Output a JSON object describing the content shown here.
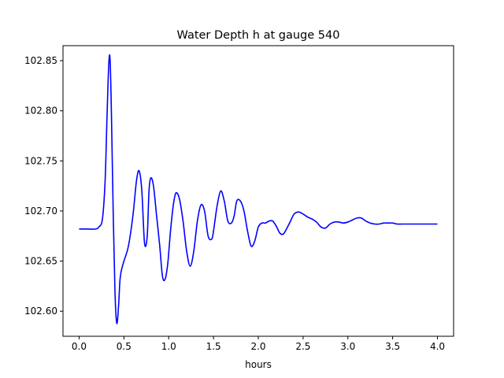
{
  "chart_data": {
    "type": "line",
    "title": "Water Depth h at gauge 540",
    "xlabel": "hours",
    "ylabel": "",
    "xlim": [
      -0.18,
      4.18
    ],
    "ylim": [
      102.575,
      102.865
    ],
    "xticks": [
      0.0,
      0.5,
      1.0,
      1.5,
      2.0,
      2.5,
      3.0,
      3.5,
      4.0
    ],
    "xtick_labels": [
      "0.0",
      "0.5",
      "1.0",
      "1.5",
      "2.0",
      "2.5",
      "3.0",
      "3.5",
      "4.0"
    ],
    "yticks": [
      102.6,
      102.65,
      102.7,
      102.75,
      102.8,
      102.85
    ],
    "ytick_labels": [
      "102.60",
      "102.65",
      "102.70",
      "102.75",
      "102.80",
      "102.85"
    ],
    "grid": false,
    "series": [
      {
        "color": "#0000ff",
        "x": [
          0.0,
          0.1,
          0.18,
          0.22,
          0.26,
          0.29,
          0.31,
          0.33,
          0.345,
          0.36,
          0.38,
          0.4,
          0.42,
          0.44,
          0.455,
          0.47,
          0.5,
          0.55,
          0.6,
          0.64,
          0.67,
          0.7,
          0.73,
          0.76,
          0.78,
          0.8,
          0.83,
          0.865,
          0.9,
          0.93,
          0.96,
          0.99,
          1.02,
          1.05,
          1.08,
          1.12,
          1.16,
          1.2,
          1.24,
          1.28,
          1.32,
          1.36,
          1.4,
          1.44,
          1.48,
          1.5,
          1.54,
          1.58,
          1.62,
          1.66,
          1.7,
          1.73,
          1.76,
          1.8,
          1.84,
          1.88,
          1.92,
          1.96,
          2.0,
          2.04,
          2.08,
          2.12,
          2.16,
          2.2,
          2.24,
          2.28,
          2.32,
          2.36,
          2.4,
          2.45,
          2.5,
          2.55,
          2.6,
          2.65,
          2.7,
          2.75,
          2.8,
          2.85,
          2.9,
          2.95,
          3.0,
          3.05,
          3.1,
          3.15,
          3.2,
          3.25,
          3.3,
          3.35,
          3.4,
          3.45,
          3.5,
          3.55,
          3.6,
          3.65,
          3.7,
          3.75,
          3.8,
          3.85,
          3.9,
          3.95,
          4.0
        ],
        "y": [
          102.682,
          102.682,
          102.682,
          102.684,
          102.692,
          102.73,
          102.79,
          102.845,
          102.852,
          102.8,
          102.7,
          102.62,
          102.588,
          102.605,
          102.63,
          102.64,
          102.65,
          102.665,
          102.695,
          102.73,
          102.74,
          102.72,
          102.668,
          102.675,
          102.72,
          102.733,
          102.725,
          102.695,
          102.665,
          102.635,
          102.632,
          102.648,
          102.68,
          102.705,
          102.718,
          102.712,
          102.69,
          102.66,
          102.645,
          102.66,
          102.69,
          102.706,
          102.7,
          102.675,
          102.672,
          102.68,
          102.705,
          102.72,
          102.71,
          102.69,
          102.688,
          102.695,
          102.71,
          102.71,
          102.7,
          102.68,
          102.665,
          102.67,
          102.684,
          102.688,
          102.688,
          102.69,
          102.69,
          102.685,
          102.678,
          102.677,
          102.683,
          102.69,
          102.697,
          102.699,
          102.697,
          102.694,
          102.692,
          102.689,
          102.684,
          102.683,
          102.687,
          102.689,
          102.689,
          102.688,
          102.689,
          102.691,
          102.693,
          102.693,
          102.69,
          102.688,
          102.687,
          102.687,
          102.688,
          102.688,
          102.688,
          102.687,
          102.687,
          102.687,
          102.687,
          102.687,
          102.687,
          102.687,
          102.687,
          102.687,
          102.687
        ]
      }
    ]
  }
}
